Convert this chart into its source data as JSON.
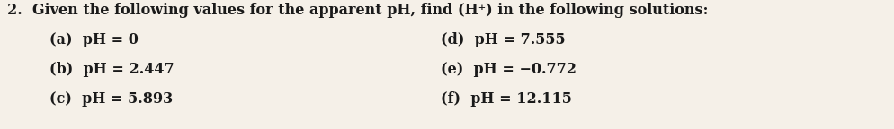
{
  "background_color": "#f5f0e8",
  "title_number": "2.",
  "title_text": "Given the following values for the apparent pH, find (H⁺) in the following solutions:",
  "items_left": [
    "(a)  pH = 0",
    "(b)  pH = 2.447",
    "(c)  pH = 5.893"
  ],
  "items_right": [
    "(d)  pH = 7.555",
    "(e)  pH = −0.772",
    "(f)  pH = 12.115"
  ],
  "font_size_title": 11.5,
  "font_size_items": 11.5,
  "text_color": "#1a1a1a",
  "font_weight": "bold",
  "font_family": "DejaVu Serif"
}
